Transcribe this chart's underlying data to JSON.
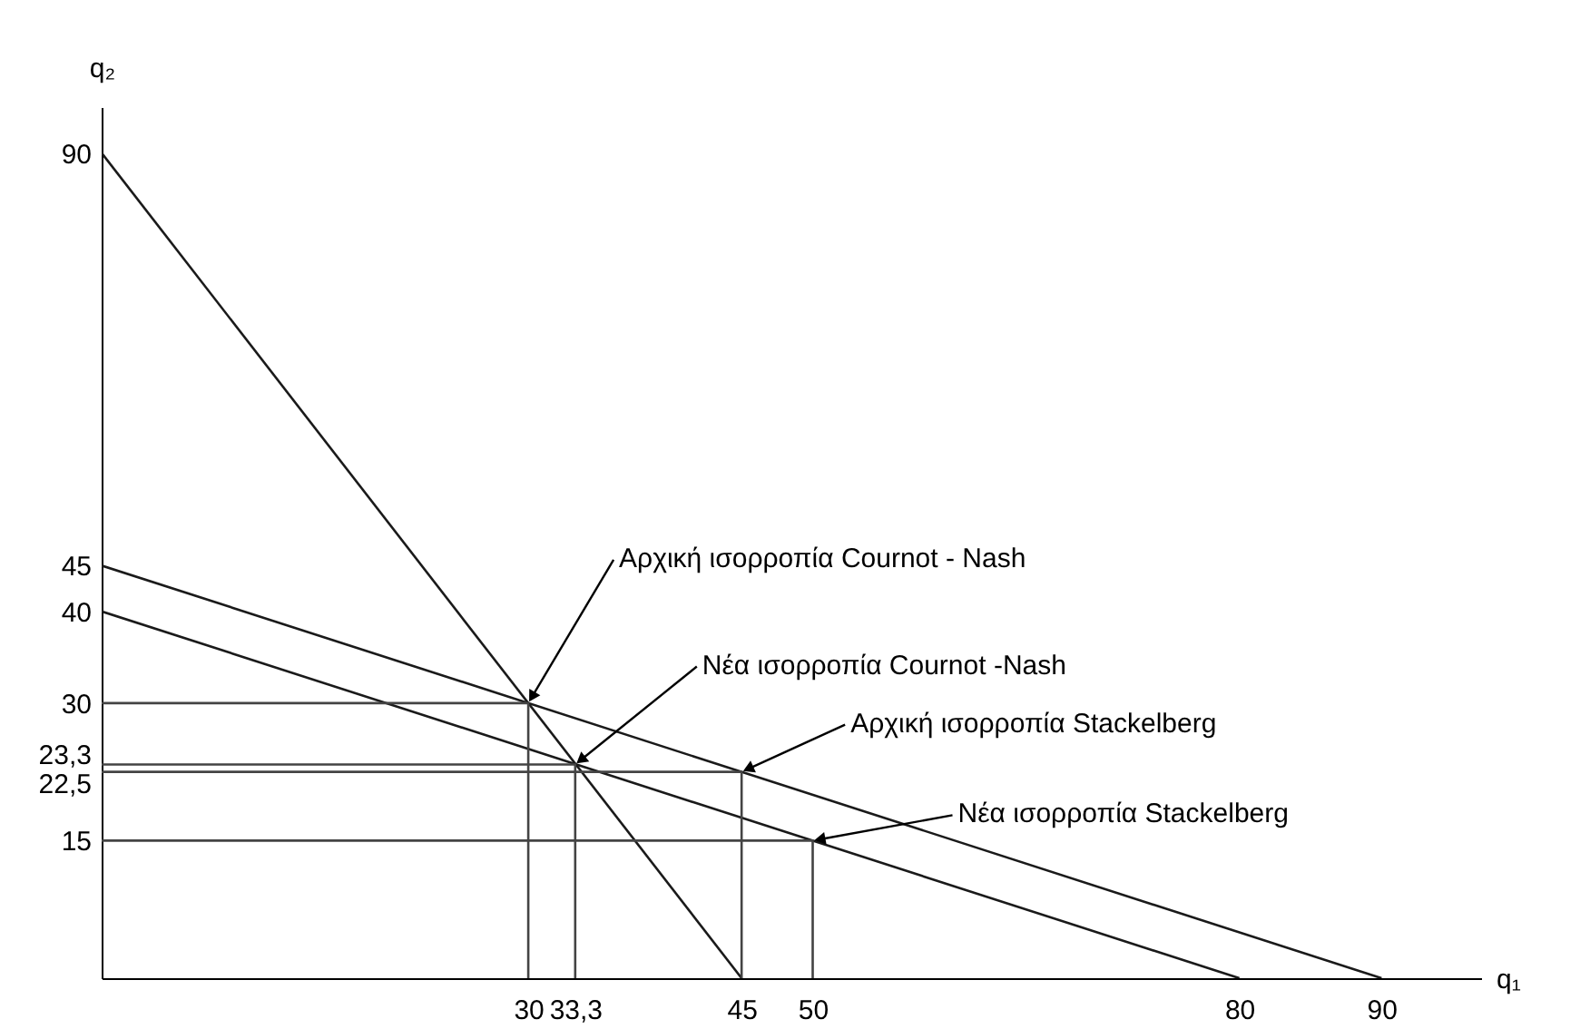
{
  "chart_data": {
    "type": "line",
    "xlabel": "q₁",
    "ylabel": "q₂",
    "xlim": [
      0,
      97
    ],
    "ylim": [
      0,
      95
    ],
    "xticks": [
      30,
      {
        "value": 33.3,
        "label": "33,3"
      },
      45,
      50,
      80,
      90
    ],
    "yticks": [
      15,
      {
        "value": 22.5,
        "label": "22,5"
      },
      {
        "value": 23.3,
        "label": "23,3"
      },
      30,
      40,
      45,
      90
    ],
    "series": [
      {
        "color": "#1a1a1a",
        "x": [
          0,
          45
        ],
        "values": [
          90,
          0
        ]
      },
      {
        "color": "#1a1a1a",
        "x": [
          0,
          90
        ],
        "values": [
          45,
          0
        ]
      },
      {
        "color": "#1a1a1a",
        "x": [
          0,
          80
        ],
        "values": [
          40,
          0
        ]
      },
      {
        "color": "#444444",
        "x": [
          0,
          30,
          30
        ],
        "values": [
          30,
          30,
          0
        ]
      },
      {
        "color": "#444444",
        "x": [
          0,
          33.3,
          33.3
        ],
        "values": [
          23.3,
          23.3,
          0
        ]
      },
      {
        "color": "#444444",
        "x": [
          0,
          45,
          45
        ],
        "values": [
          22.5,
          22.5,
          0
        ]
      },
      {
        "color": "#444444",
        "x": [
          0,
          50,
          50
        ],
        "values": [
          15,
          15,
          0
        ]
      }
    ],
    "annotations": [
      {
        "text": "Αρχική ισορροπία Cournot - Nash",
        "x": 30,
        "y": 30
      },
      {
        "text": "Νέα ισορροπία Cournot -Nash",
        "x": 33.3,
        "y": 23.3
      },
      {
        "text": "Αρχική ισορροπία Stackelberg",
        "x": 45,
        "y": 22.5
      },
      {
        "text": "Νέα ισορροπία Stackelberg",
        "x": 50,
        "y": 15
      }
    ]
  }
}
